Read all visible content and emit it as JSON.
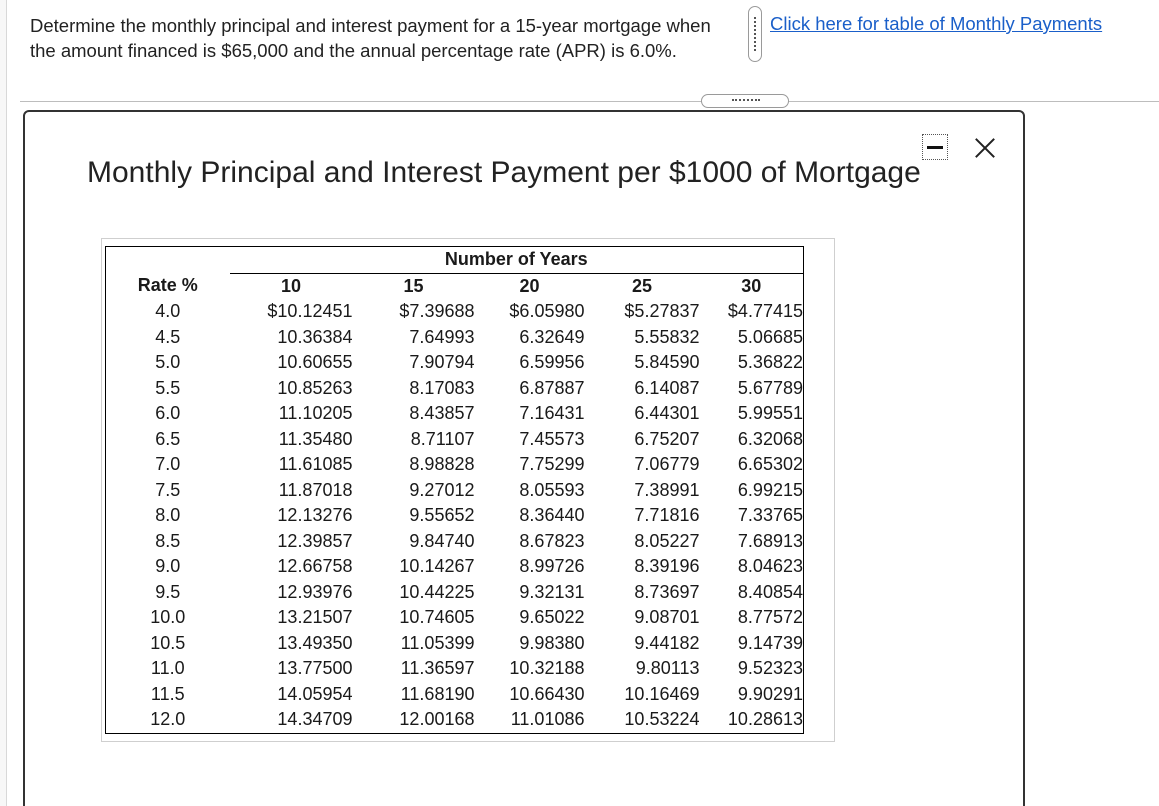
{
  "question": {
    "text": "Determine the monthly principal and interest payment for a 15-year mortgage when the amount financed is $65,000 and the annual percentage rate (APR) is 6.0%."
  },
  "link": {
    "label": "Click here for table of Monthly Payments"
  },
  "dialog": {
    "title": "Monthly Principal and Interest Payment per $1000 of Mortgage"
  },
  "table": {
    "group_header": "Number of Years",
    "rate_header": "Rate %",
    "years": [
      "10",
      "15",
      "20",
      "25",
      "30"
    ],
    "rows": [
      [
        "4.0",
        "$10.12451",
        "$7.39688",
        "$6.05980",
        "$5.27837",
        "$4.77415"
      ],
      [
        "4.5",
        "10.36384",
        "7.64993",
        "6.32649",
        "5.55832",
        "5.06685"
      ],
      [
        "5.0",
        "10.60655",
        "7.90794",
        "6.59956",
        "5.84590",
        "5.36822"
      ],
      [
        "5.5",
        "10.85263",
        "8.17083",
        "6.87887",
        "6.14087",
        "5.67789"
      ],
      [
        "6.0",
        "11.10205",
        "8.43857",
        "7.16431",
        "6.44301",
        "5.99551"
      ],
      [
        "6.5",
        "11.35480",
        "8.71107",
        "7.45573",
        "6.75207",
        "6.32068"
      ],
      [
        "7.0",
        "11.61085",
        "8.98828",
        "7.75299",
        "7.06779",
        "6.65302"
      ],
      [
        "7.5",
        "11.87018",
        "9.27012",
        "8.05593",
        "7.38991",
        "6.99215"
      ],
      [
        "8.0",
        "12.13276",
        "9.55652",
        "8.36440",
        "7.71816",
        "7.33765"
      ],
      [
        "8.5",
        "12.39857",
        "9.84740",
        "8.67823",
        "8.05227",
        "7.68913"
      ],
      [
        "9.0",
        "12.66758",
        "10.14267",
        "8.99726",
        "8.39196",
        "8.04623"
      ],
      [
        "9.5",
        "12.93976",
        "10.44225",
        "9.32131",
        "8.73697",
        "8.40854"
      ],
      [
        "10.0",
        "13.21507",
        "10.74605",
        "9.65022",
        "9.08701",
        "8.77572"
      ],
      [
        "10.5",
        "13.49350",
        "11.05399",
        "9.98380",
        "9.44182",
        "9.14739"
      ],
      [
        "11.0",
        "13.77500",
        "11.36597",
        "10.32188",
        "9.80113",
        "9.52323"
      ],
      [
        "11.5",
        "14.05954",
        "11.68190",
        "10.66430",
        "10.16469",
        "9.90291"
      ],
      [
        "12.0",
        "14.34709",
        "12.00168",
        "11.01086",
        "10.53224",
        "10.28613"
      ]
    ]
  },
  "colors": {
    "link": "#1a5fc9",
    "text": "#222222",
    "border": "#333333"
  },
  "icons": {
    "minimize": "minimize-icon",
    "close": "close-icon",
    "splitter": "drag-handle-icon"
  }
}
